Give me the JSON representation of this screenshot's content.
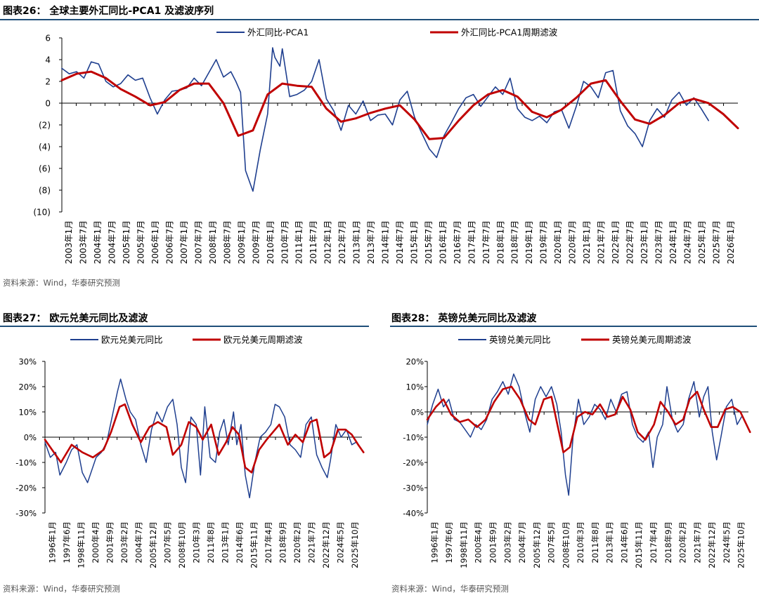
{
  "figures": [
    {
      "title": "图表26：  全球主要外汇同比-PCA1 及滤波序列",
      "source": "资料来源：Wind，华泰研究预测"
    },
    {
      "title": "图表27：  欧元兑美元同比及滤波",
      "source": "资料来源：Wind，华泰研究预测"
    },
    {
      "title": "图表28：  英镑兑美元同比及滤波",
      "source": "资料来源：Wind，华泰研究预测"
    }
  ],
  "colors": {
    "actual": "#1f3f8f",
    "filter": "#c00000",
    "rule": "#1f4e79"
  },
  "chart_data": [
    {
      "type": "line",
      "title": "全球主要外汇同比-PCA1 及滤波序列",
      "x_tick_labels": [
        "2003年1月",
        "2003年7月",
        "2004年1月",
        "2004年7月",
        "2005年1月",
        "2005年7月",
        "2006年1月",
        "2006年7月",
        "2007年1月",
        "2007年7月",
        "2008年1月",
        "2008年7月",
        "2009年1月",
        "2009年7月",
        "2010年1月",
        "2010年7月",
        "2011年1月",
        "2011年7月",
        "2012年1月",
        "2012年7月",
        "2013年1月",
        "2013年7月",
        "2014年1月",
        "2014年7月",
        "2015年1月",
        "2015年7月",
        "2016年1月",
        "2016年7月",
        "2017年1月",
        "2017年7月",
        "2018年1月",
        "2018年7月",
        "2019年1月",
        "2019年7月",
        "2020年1月",
        "2020年7月",
        "2021年1月",
        "2021年7月",
        "2022年1月",
        "2022年7月",
        "2023年1月",
        "2023年7月",
        "2024年1月",
        "2024年7月",
        "2025年1月",
        "2025年7月",
        "2026年1月"
      ],
      "y_tick_labels": [
        "6",
        "4",
        "2",
        "0",
        "(2)",
        "(4)",
        "(6)",
        "(8)",
        "(10)"
      ],
      "ylim": [
        -10,
        6
      ],
      "ystep": 2,
      "legend_position": "top",
      "series": [
        {
          "name": "外汇同比-PCA1",
          "x": [
            2003.0,
            2003.25,
            2003.5,
            2003.75,
            2004.0,
            2004.25,
            2004.5,
            2004.75,
            2005.0,
            2005.25,
            2005.5,
            2005.75,
            2006.0,
            2006.25,
            2006.5,
            2006.75,
            2007.0,
            2007.25,
            2007.5,
            2007.75,
            2008.0,
            2008.25,
            2008.5,
            2008.75,
            2008.92,
            2009.08,
            2009.25,
            2009.5,
            2009.75,
            2010.0,
            2010.17,
            2010.25,
            2010.42,
            2010.5,
            2010.75,
            2011.0,
            2011.25,
            2011.5,
            2011.75,
            2012.0,
            2012.25,
            2012.5,
            2012.75,
            2013.0,
            2013.25,
            2013.5,
            2013.75,
            2014.0,
            2014.25,
            2014.5,
            2014.75,
            2015.0,
            2015.25,
            2015.5,
            2015.75,
            2016.0,
            2016.25,
            2016.5,
            2016.75,
            2017.0,
            2017.25,
            2017.5,
            2017.75,
            2018.0,
            2018.25,
            2018.5,
            2018.75,
            2019.0,
            2019.25,
            2019.5,
            2019.75,
            2020.0,
            2020.25,
            2020.5,
            2020.75,
            2021.0,
            2021.25,
            2021.5,
            2021.75,
            2022.0,
            2022.25,
            2022.5,
            2022.75,
            2023.0,
            2023.25,
            2023.5,
            2023.75,
            2024.0,
            2024.25,
            2024.5,
            2024.75,
            2025.0
          ],
          "values": [
            3.2,
            2.7,
            2.9,
            2.3,
            3.8,
            3.6,
            2.0,
            1.5,
            1.8,
            2.6,
            2.1,
            2.3,
            0.5,
            -1.0,
            0.3,
            1.1,
            1.2,
            1.4,
            2.3,
            1.6,
            2.8,
            4.0,
            2.4,
            2.9,
            2.0,
            1.0,
            -6.2,
            -8.1,
            -4.3,
            -1.0,
            5.1,
            4.2,
            3.4,
            5.0,
            0.6,
            0.8,
            1.2,
            2.0,
            4.0,
            0.4,
            -0.7,
            -2.5,
            -0.2,
            -1.0,
            0.2,
            -1.6,
            -1.1,
            -1.0,
            -2.0,
            0.3,
            1.1,
            -1.3,
            -2.8,
            -4.2,
            -5.0,
            -3.0,
            -1.8,
            -0.5,
            0.5,
            0.8,
            -0.3,
            0.6,
            1.5,
            0.8,
            2.3,
            -0.5,
            -1.3,
            -1.6,
            -1.2,
            -1.8,
            -0.8,
            -0.6,
            -2.3,
            -0.3,
            2.0,
            1.5,
            0.5,
            2.8,
            3.0,
            -0.7,
            -2.1,
            -2.8,
            -4.0,
            -1.6,
            -0.5,
            -1.3,
            0.3,
            1.0,
            -0.2,
            0.5,
            -0.5,
            -1.6
          ]
        },
        {
          "name": "外汇同比-PCA1周期滤波",
          "x": [
            2003.0,
            2003.5,
            2004.0,
            2004.5,
            2005.0,
            2005.5,
            2006.0,
            2006.5,
            2007.0,
            2007.5,
            2008.0,
            2008.5,
            2009.0,
            2009.5,
            2010.0,
            2010.5,
            2011.0,
            2011.5,
            2012.0,
            2012.5,
            2013.0,
            2013.5,
            2014.0,
            2014.5,
            2015.0,
            2015.5,
            2016.0,
            2016.5,
            2017.0,
            2017.5,
            2018.0,
            2018.5,
            2019.0,
            2019.5,
            2020.0,
            2020.5,
            2021.0,
            2021.5,
            2022.0,
            2022.5,
            2023.0,
            2023.5,
            2024.0,
            2024.5,
            2025.0,
            2025.5,
            2026.0
          ],
          "values": [
            2.1,
            2.7,
            2.9,
            2.3,
            1.3,
            0.6,
            -0.2,
            0.1,
            1.2,
            1.8,
            1.8,
            0.0,
            -3.0,
            -2.5,
            0.8,
            1.8,
            1.6,
            1.5,
            -0.5,
            -1.7,
            -1.4,
            -0.9,
            -0.5,
            -0.2,
            -1.5,
            -3.3,
            -3.2,
            -1.6,
            -0.2,
            0.8,
            1.2,
            0.6,
            -0.8,
            -1.3,
            -0.6,
            0.5,
            1.8,
            2.1,
            0.2,
            -1.5,
            -1.9,
            -1.1,
            0.0,
            0.4,
            0.0,
            -1.0,
            -2.3
          ]
        }
      ]
    },
    {
      "type": "line",
      "title": "欧元兑美元同比及滤波",
      "x_tick_labels": [
        "1996年1月",
        "1997年6月",
        "1998年11月",
        "2000年4月",
        "2001年9月",
        "2003年2月",
        "2004年7月",
        "2005年12月",
        "2007年5月",
        "2008年10月",
        "2010年3月",
        "2011年8月",
        "2013年1月",
        "2014年6月",
        "2015年11月",
        "2017年4月",
        "2018年9月",
        "2020年2月",
        "2021年7月",
        "2022年12月",
        "2024年5月",
        "2025年10月"
      ],
      "y_tick_labels": [
        "30%",
        "20%",
        "10%",
        "0%",
        "-10%",
        "-20%",
        "-30%"
      ],
      "ylim": [
        -30,
        30
      ],
      "ystep": 10,
      "legend_position": "top",
      "series": [
        {
          "name": "欧元兑美元同比",
          "x": [
            1996.0,
            1996.5,
            1997.0,
            1997.4,
            1998.0,
            1998.5,
            1999.0,
            1999.5,
            2000.0,
            2000.8,
            2001.3,
            2001.8,
            2002.3,
            2002.8,
            2003.1,
            2003.6,
            2004.0,
            2004.5,
            2005.0,
            2005.5,
            2006.0,
            2006.5,
            2007.0,
            2007.5,
            2008.0,
            2008.4,
            2008.8,
            2009.2,
            2009.7,
            2010.2,
            2010.6,
            2011.0,
            2011.5,
            2012.0,
            2012.4,
            2012.8,
            2013.2,
            2013.7,
            2014.0,
            2014.4,
            2014.8,
            2015.2,
            2015.7,
            2016.2,
            2016.7,
            2017.2,
            2017.6,
            2018.0,
            2018.5,
            2019.0,
            2019.5,
            2020.0,
            2020.5,
            2021.0,
            2021.5,
            2022.0,
            2022.5,
            2022.8,
            2023.3,
            2023.8,
            2024.3,
            2024.8,
            2025.2
          ],
          "values": [
            -2,
            -8,
            -6,
            -15,
            -10,
            -5,
            -3,
            -14,
            -18,
            -8,
            -6,
            -2,
            8,
            18,
            23,
            15,
            10,
            7,
            -3,
            -10,
            3,
            10,
            6,
            12,
            15,
            5,
            -12,
            -18,
            8,
            5,
            -15,
            12,
            -8,
            -10,
            2,
            7,
            -3,
            10,
            -3,
            5,
            -15,
            -24,
            -10,
            0,
            2,
            5,
            13,
            12,
            8,
            -3,
            -5,
            -8,
            5,
            8,
            -7,
            -12,
            -16,
            -9,
            5,
            0,
            3,
            -3,
            -2
          ]
        },
        {
          "name": "欧元兑美元周期滤波",
          "x": [
            1996.0,
            1997.0,
            1997.5,
            1998.5,
            1999.5,
            2000.5,
            2001.5,
            2002.2,
            2003.0,
            2003.5,
            2004.2,
            2005.0,
            2005.8,
            2006.6,
            2007.4,
            2008.0,
            2008.8,
            2009.5,
            2010.2,
            2010.8,
            2011.6,
            2012.3,
            2013.0,
            2013.6,
            2014.2,
            2014.8,
            2015.4,
            2016.1,
            2016.8,
            2017.4,
            2018.0,
            2018.8,
            2019.5,
            2020.2,
            2020.9,
            2021.5,
            2022.2,
            2022.8,
            2023.5,
            2024.2,
            2024.8,
            2025.4,
            2025.9
          ],
          "values": [
            -1,
            -7,
            -10,
            -3,
            -6,
            -8,
            -5,
            2,
            12,
            13,
            5,
            -2,
            4,
            6,
            4,
            -7,
            -3,
            6,
            4,
            -1,
            5,
            -7,
            -2,
            4,
            1,
            -12,
            -14,
            -5,
            -1,
            2,
            5,
            -3,
            1,
            -2,
            6,
            7,
            -8,
            -6,
            3,
            3,
            1,
            -3,
            -6
          ]
        }
      ]
    },
    {
      "type": "line",
      "title": "英镑兑美元同比及滤波",
      "x_tick_labels": [
        "1996年1月",
        "1997年6月",
        "1998年11月",
        "2000年4月",
        "2001年9月",
        "2003年2月",
        "2004年7月",
        "2005年12月",
        "2007年5月",
        "2008年10月",
        "2010年3月",
        "2011年8月",
        "2013年1月",
        "2014年6月",
        "2015年11月",
        "2017年4月",
        "2018年9月",
        "2020年2月",
        "2021年7月",
        "2022年12月",
        "2024年5月",
        "2025年10月"
      ],
      "y_tick_labels": [
        "20%",
        "10%",
        "0%",
        "-10%",
        "-20%",
        "-30%",
        "-40%"
      ],
      "ylim": [
        -40,
        20
      ],
      "ystep": 10,
      "legend_position": "top",
      "series": [
        {
          "name": "英镑兑美元同比",
          "x": [
            1996.0,
            1996.5,
            1997.0,
            1997.5,
            1998.0,
            1998.5,
            1999.0,
            1999.5,
            2000.0,
            2000.5,
            2001.0,
            2001.5,
            2002.0,
            2002.5,
            2003.0,
            2003.5,
            2004.0,
            2004.5,
            2005.0,
            2005.5,
            2006.0,
            2006.5,
            2007.0,
            2007.5,
            2008.0,
            2008.4,
            2008.8,
            2009.1,
            2009.5,
            2010.0,
            2010.5,
            2011.0,
            2011.5,
            2012.0,
            2012.5,
            2013.0,
            2013.5,
            2014.0,
            2014.5,
            2015.0,
            2015.5,
            2016.0,
            2016.5,
            2016.9,
            2017.3,
            2017.8,
            2018.2,
            2018.7,
            2019.2,
            2019.7,
            2020.2,
            2020.7,
            2021.2,
            2021.6,
            2022.0,
            2022.4,
            2022.8,
            2023.2,
            2023.7,
            2024.2,
            2024.7,
            2025.1
          ],
          "values": [
            -5,
            3,
            9,
            2,
            5,
            -3,
            -4,
            -7,
            -10,
            -5,
            -7,
            -3,
            5,
            8,
            12,
            7,
            15,
            10,
            0,
            -8,
            5,
            10,
            6,
            10,
            3,
            -8,
            -25,
            -33,
            -10,
            5,
            -5,
            -2,
            3,
            1,
            -3,
            5,
            0,
            7,
            8,
            -5,
            -10,
            -12,
            -8,
            -22,
            -10,
            -5,
            10,
            -3,
            -8,
            -5,
            5,
            12,
            -2,
            6,
            10,
            -8,
            -19,
            -10,
            2,
            5,
            -5,
            -2
          ]
        },
        {
          "name": "英镑兑美元周期滤波",
          "x": [
            1996.0,
            1996.8,
            1997.5,
            1998.2,
            1999.0,
            1999.8,
            2000.6,
            2001.4,
            2002.2,
            2003.0,
            2003.8,
            2004.6,
            2005.4,
            2006.0,
            2006.8,
            2007.5,
            2008.0,
            2008.6,
            2009.2,
            2009.9,
            2010.6,
            2011.3,
            2012.0,
            2012.7,
            2013.4,
            2014.1,
            2014.8,
            2015.5,
            2016.2,
            2017.0,
            2017.6,
            2018.3,
            2019.0,
            2019.7,
            2020.3,
            2021.0,
            2021.6,
            2022.3,
            2022.9,
            2023.6,
            2024.3,
            2025.0,
            2025.9
          ],
          "values": [
            -3,
            2,
            5,
            -1,
            -4,
            -3,
            -6,
            -3,
            4,
            9,
            10,
            5,
            -3,
            -5,
            5,
            6,
            -4,
            -16,
            -14,
            -2,
            0,
            -1,
            3,
            -2,
            -1,
            6,
            1,
            -8,
            -11,
            -5,
            4,
            0,
            -5,
            -3,
            5,
            8,
            1,
            -6,
            -6,
            1,
            2,
            0,
            -8
          ]
        }
      ]
    }
  ]
}
